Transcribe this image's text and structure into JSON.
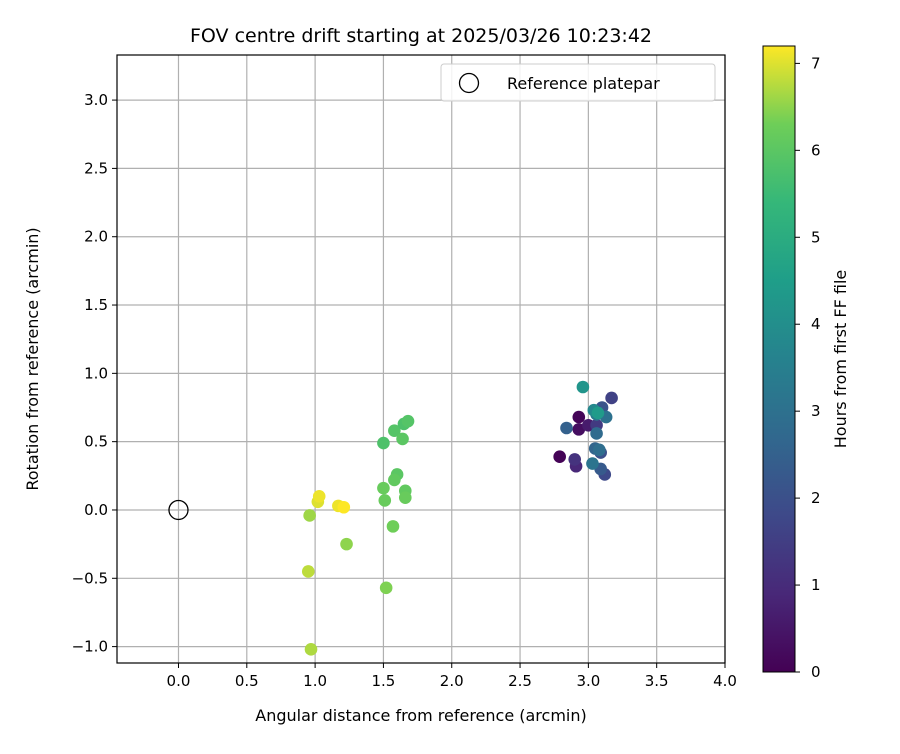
{
  "chart_data": {
    "type": "scatter",
    "title": "FOV centre drift starting at 2025/03/26 10:23:42",
    "xlabel": "Angular distance from reference (arcmin)",
    "ylabel": "Rotation from reference (arcmin)",
    "xlim": [
      -0.45,
      4.0
    ],
    "ylim": [
      -1.12,
      3.33
    ],
    "xticks": [
      "0.0",
      "0.5",
      "1.0",
      "1.5",
      "2.0",
      "2.5",
      "3.0",
      "3.5",
      "4.0"
    ],
    "yticks": [
      "−1.0",
      "−0.5",
      "0.0",
      "0.5",
      "1.0",
      "1.5",
      "2.0",
      "2.5",
      "3.0"
    ],
    "grid": true,
    "legend": {
      "placement": "top-right",
      "entries": [
        "Reference platepar"
      ]
    },
    "reference_point": {
      "x": 0.0,
      "y": 0.0,
      "marker": "open-circle"
    },
    "colorbar": {
      "label": "Hours from first FF file",
      "colormap": "viridis",
      "range": [
        0,
        7.2
      ],
      "ticks": [
        "0",
        "1",
        "2",
        "3",
        "4",
        "5",
        "6",
        "7"
      ]
    },
    "points": [
      {
        "x": 2.79,
        "y": 0.39,
        "h": 0.05
      },
      {
        "x": 2.93,
        "y": 0.68,
        "h": 0.1
      },
      {
        "x": 2.93,
        "y": 0.59,
        "h": 0.3
      },
      {
        "x": 3.0,
        "y": 0.62,
        "h": 0.6
      },
      {
        "x": 2.91,
        "y": 0.32,
        "h": 0.9
      },
      {
        "x": 2.9,
        "y": 0.37,
        "h": 1.2
      },
      {
        "x": 3.06,
        "y": 0.62,
        "h": 1.4
      },
      {
        "x": 3.17,
        "y": 0.82,
        "h": 1.6
      },
      {
        "x": 3.12,
        "y": 0.26,
        "h": 1.8
      },
      {
        "x": 3.09,
        "y": 0.42,
        "h": 2.0
      },
      {
        "x": 3.1,
        "y": 0.75,
        "h": 2.1
      },
      {
        "x": 3.09,
        "y": 0.3,
        "h": 2.3
      },
      {
        "x": 2.84,
        "y": 0.6,
        "h": 2.5
      },
      {
        "x": 3.05,
        "y": 0.45,
        "h": 2.6
      },
      {
        "x": 3.06,
        "y": 0.56,
        "h": 2.8
      },
      {
        "x": 3.08,
        "y": 0.44,
        "h": 2.9
      },
      {
        "x": 3.13,
        "y": 0.68,
        "h": 3.0
      },
      {
        "x": 3.03,
        "y": 0.34,
        "h": 3.1
      },
      {
        "x": 3.06,
        "y": 0.7,
        "h": 3.3
      },
      {
        "x": 3.04,
        "y": 0.73,
        "h": 3.8
      },
      {
        "x": 2.96,
        "y": 0.9,
        "h": 4.2
      },
      {
        "x": 3.07,
        "y": 0.71,
        "h": 4.4
      },
      {
        "x": 1.5,
        "y": 0.49,
        "h": 5.8
      },
      {
        "x": 1.58,
        "y": 0.58,
        "h": 5.9
      },
      {
        "x": 1.64,
        "y": 0.52,
        "h": 6.0
      },
      {
        "x": 1.65,
        "y": 0.63,
        "h": 5.8
      },
      {
        "x": 1.68,
        "y": 0.65,
        "h": 5.9
      },
      {
        "x": 1.6,
        "y": 0.26,
        "h": 6.0
      },
      {
        "x": 1.58,
        "y": 0.22,
        "h": 6.1
      },
      {
        "x": 1.5,
        "y": 0.16,
        "h": 6.2
      },
      {
        "x": 1.66,
        "y": 0.14,
        "h": 6.1
      },
      {
        "x": 1.51,
        "y": 0.07,
        "h": 6.2
      },
      {
        "x": 1.66,
        "y": 0.09,
        "h": 6.2
      },
      {
        "x": 1.57,
        "y": -0.12,
        "h": 6.3
      },
      {
        "x": 1.23,
        "y": -0.25,
        "h": 6.5
      },
      {
        "x": 1.52,
        "y": -0.57,
        "h": 6.4
      },
      {
        "x": 0.96,
        "y": -0.04,
        "h": 6.6
      },
      {
        "x": 0.95,
        "y": -0.45,
        "h": 6.8
      },
      {
        "x": 0.97,
        "y": -1.02,
        "h": 6.7
      },
      {
        "x": 1.02,
        "y": 0.06,
        "h": 7.0
      },
      {
        "x": 1.03,
        "y": 0.1,
        "h": 7.1
      },
      {
        "x": 1.17,
        "y": 0.03,
        "h": 7.1
      },
      {
        "x": 1.21,
        "y": 0.02,
        "h": 7.2
      }
    ]
  }
}
